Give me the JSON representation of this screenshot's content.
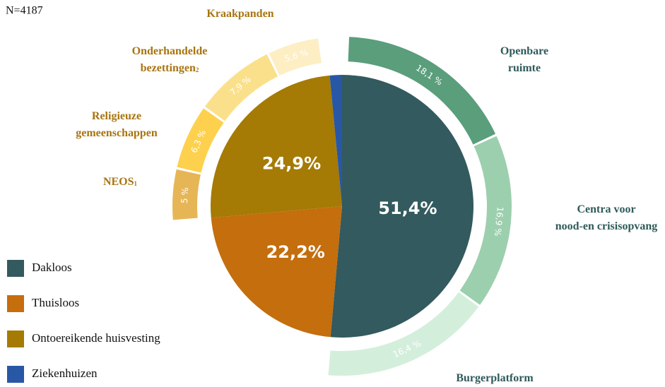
{
  "chart_data": {
    "type": "pie",
    "note": "N=4187",
    "categories": [
      "Dakloos",
      "Thuisloos",
      "Ontoereikende huisvesting",
      "Ziekenhuizen"
    ],
    "values": [
      51.4,
      22.2,
      24.9,
      1.5
    ],
    "value_labels": [
      "51,4%",
      "22,2%",
      "24,9%",
      null
    ],
    "colors": [
      "#335a5e",
      "#c46e0e",
      "#a57a05",
      "#2857a6"
    ],
    "ring": [
      {
        "label_lines": [
          "Openbare",
          "ruimte"
        ],
        "value": 18.1,
        "value_label": "18,1 %",
        "color": "#5a9e7c"
      },
      {
        "label_lines": [
          "Centra voor",
          "nood-en crisisopvang"
        ],
        "value": 16.9,
        "value_label": "16,9 %",
        "color": "#9ccfae"
      },
      {
        "label_lines": [
          "Burgerplatform"
        ],
        "value": 16.4,
        "value_label": "16,4 %",
        "color": "#d4eedc"
      },
      {
        "label_lines": [
          "NEOS"
        ],
        "footnote": "1",
        "value": 5,
        "value_label": "5 %",
        "color": "#e6b656"
      },
      {
        "label_lines": [
          "Religieuze",
          "gemeenschappen"
        ],
        "value": 6.3,
        "value_label": "6,3 %",
        "color": "#fdd14e"
      },
      {
        "label_lines": [
          "Onderhandelde",
          "bezettingen"
        ],
        "footnote": "2",
        "value": 7.9,
        "value_label": "7,9 %",
        "color": "#fbe08c"
      },
      {
        "label_lines": [
          "Kraakpanden"
        ],
        "value": 5.6,
        "value_label": "5,6 %",
        "color": "#fdeec4"
      }
    ]
  }
}
